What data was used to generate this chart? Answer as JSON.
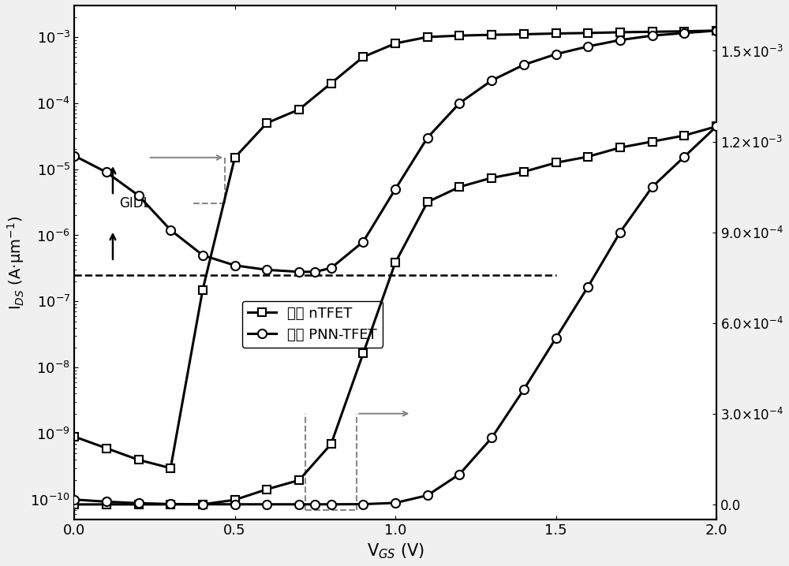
{
  "xlabel": "V$_{GS}$ (V)",
  "ylabel_left": "I$_{DS}$ (A·μm$^{-1}$)",
  "xlim": [
    0.0,
    2.0
  ],
  "ylim_log": [
    5e-11,
    0.003
  ],
  "ylim_linear": [
    -5e-05,
    0.00165
  ],
  "right_yticks": [
    0.0,
    0.0003,
    0.0006,
    0.0009,
    0.0012,
    0.0015
  ],
  "legend_labels": [
    "新型 nTFET",
    "常规 PNN-TFET"
  ],
  "dashed_hline_y": 2.5e-07,
  "ntfet_x": [
    0.0,
    0.1,
    0.2,
    0.3,
    0.4,
    0.5,
    0.6,
    0.7,
    0.8,
    0.9,
    1.0,
    1.1,
    1.2,
    1.3,
    1.4,
    1.5,
    1.6,
    1.7,
    1.8,
    1.9,
    2.0
  ],
  "ntfet_y": [
    9e-10,
    6e-10,
    4e-10,
    3e-10,
    1.5e-07,
    1.5e-05,
    5e-05,
    8e-05,
    0.0002,
    0.0005,
    0.0008,
    0.001,
    0.00105,
    0.00108,
    0.0011,
    0.00113,
    0.00115,
    0.00118,
    0.0012,
    0.00122,
    0.00125
  ],
  "pnn_x": [
    0.0,
    0.1,
    0.2,
    0.3,
    0.4,
    0.5,
    0.6,
    0.7,
    0.75,
    0.8,
    0.9,
    1.0,
    1.1,
    1.2,
    1.3,
    1.4,
    1.5,
    1.6,
    1.7,
    1.8,
    1.9,
    2.0
  ],
  "pnn_y": [
    1.6e-05,
    9e-06,
    4e-06,
    1.2e-06,
    5e-07,
    3.5e-07,
    3e-07,
    2.8e-07,
    2.8e-07,
    3.2e-07,
    8e-07,
    5e-06,
    3e-05,
    0.0001,
    0.00022,
    0.00038,
    0.00055,
    0.00072,
    0.0009,
    0.00105,
    0.00115,
    0.00125
  ],
  "background_color": "#f5f5f5",
  "gray": "#888888"
}
